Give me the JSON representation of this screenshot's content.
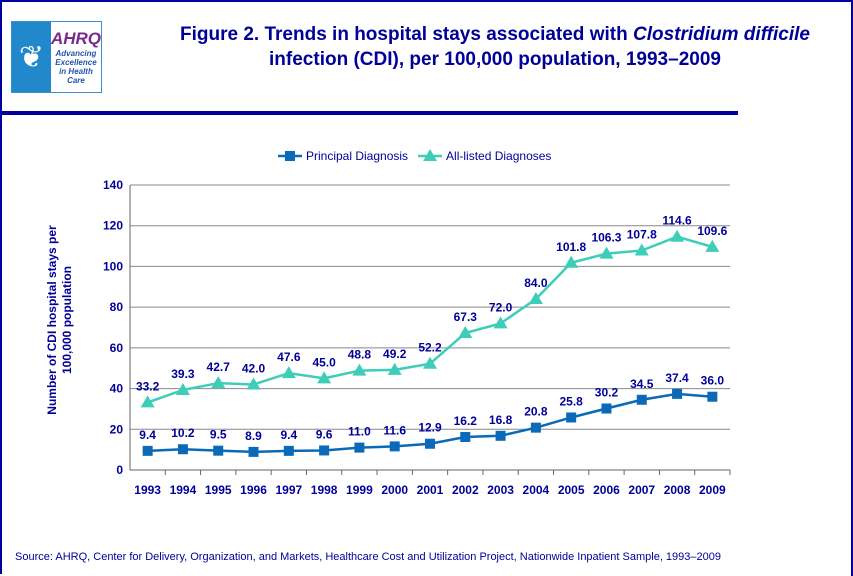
{
  "header": {
    "logo": {
      "agency_seal": "Department of Health & Human Services USA",
      "brand": "AHRQ",
      "tagline": "Advancing Excellence in Health Care"
    },
    "title_part1": "Figure 2. Trends in hospital stays associated with ",
    "title_italic": "Clostridium difficile",
    "title_part2": " infection (CDI), per 100,000 population, 1993–2009"
  },
  "chart_data": {
    "type": "line",
    "ylabel": "Number of CDI hospital stays per 100,000  population",
    "xlabel": "",
    "ylim": [
      0,
      140
    ],
    "yticks": [
      0,
      20,
      40,
      60,
      80,
      100,
      120,
      140
    ],
    "grid": true,
    "legend_placement": "top",
    "categories": [
      "1993",
      "1994",
      "1995",
      "1996",
      "1997",
      "1998",
      "1999",
      "2000",
      "2001",
      "2002",
      "2003",
      "2004",
      "2005",
      "2006",
      "2007",
      "2008",
      "2009"
    ],
    "series": [
      {
        "name": "Principal Diagnosis",
        "marker": "square",
        "color": "#0a6ab8",
        "labels": [
          "9.4",
          "10.2",
          "9.5",
          "8.9",
          "9.4",
          "9.6",
          "11.0",
          "11.6",
          "12.9",
          "16.2",
          "16.8",
          "20.8",
          "25.8",
          "30.2",
          "34.5",
          "37.4",
          "36.0"
        ],
        "values": [
          9.4,
          10.2,
          9.5,
          8.9,
          9.4,
          9.6,
          11.0,
          11.6,
          12.9,
          16.2,
          16.8,
          20.8,
          25.8,
          30.2,
          34.5,
          37.4,
          36.0
        ]
      },
      {
        "name": "All-listed Diagnoses",
        "marker": "triangle",
        "color": "#3ecdb8",
        "labels": [
          "33.2",
          "39.3",
          "42.7",
          "42.0",
          "47.6",
          "45.0",
          "48.8",
          "49.2",
          "52.2",
          "67.3",
          "72.0",
          "84.0",
          "101.8",
          "106.3",
          "107.8",
          "114.6",
          "109.6"
        ],
        "values": [
          33.2,
          39.3,
          42.7,
          42.0,
          47.6,
          45.0,
          48.8,
          49.2,
          52.2,
          67.3,
          72.0,
          84.0,
          101.8,
          106.3,
          107.8,
          114.6,
          109.6
        ]
      }
    ]
  },
  "source": "Source: AHRQ, Center for Delivery, Organization, and Markets, Healthcare Cost and Utilization Project, Nationwide Inpatient Sample, 1993–2009",
  "colors": {
    "text": "#000099",
    "frame": "#0000a0"
  }
}
